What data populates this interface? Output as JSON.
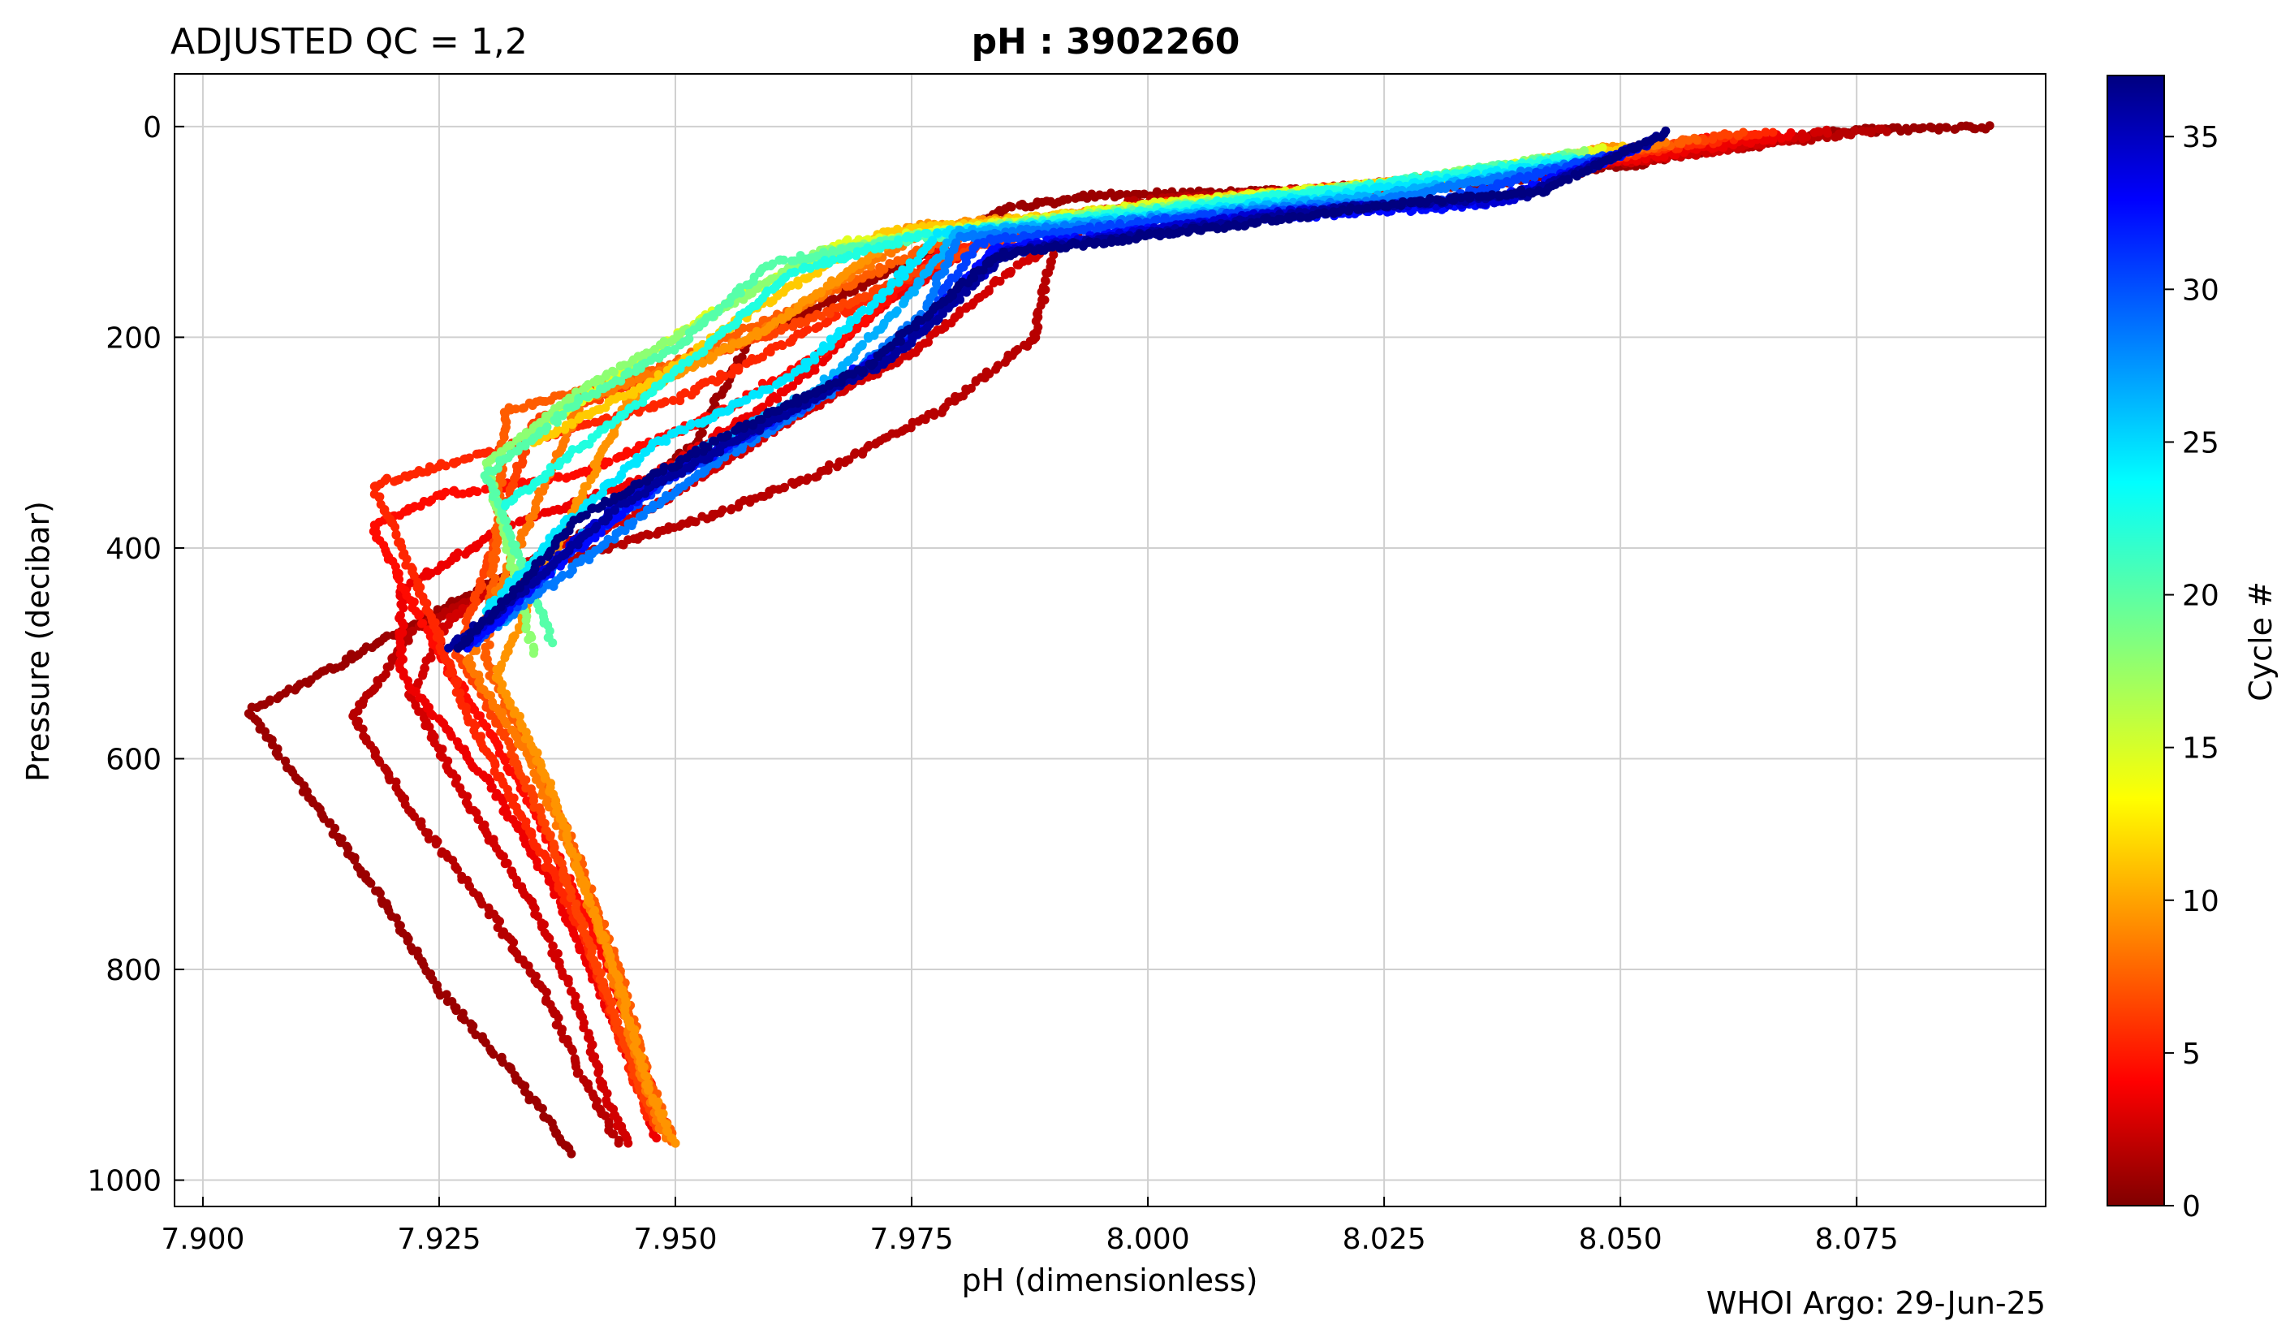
{
  "header": {
    "left_title": "ADJUSTED QC = 1,2",
    "center_title": "pH : 3902260"
  },
  "footer": {
    "credit": "WHOI Argo: 29-Jun-25"
  },
  "chart_data": {
    "type": "scatter",
    "title": "pH : 3902260",
    "xlabel": "pH  (dimensionless)",
    "ylabel": "Pressure  (decibar)",
    "xlim": [
      7.897,
      8.095
    ],
    "ylim": [
      1025,
      -50
    ],
    "y_inverted": true,
    "x_ticks": [
      7.9,
      7.925,
      7.95,
      7.975,
      8.0,
      8.025,
      8.05,
      8.075
    ],
    "x_tick_labels": [
      "7.900",
      "7.925",
      "7.950",
      "7.975",
      "8.000",
      "8.025",
      "8.050",
      "8.075"
    ],
    "y_ticks": [
      0,
      200,
      400,
      600,
      800,
      1000
    ],
    "y_tick_labels": [
      "0",
      "200",
      "400",
      "600",
      "800",
      "1000"
    ],
    "grid": true,
    "colorbar": {
      "label": "Cycle #",
      "min": 0,
      "max": 37,
      "ticks": [
        0,
        5,
        10,
        15,
        20,
        25,
        30,
        35
      ],
      "tick_labels": [
        "0",
        "5",
        "10",
        "15",
        "20",
        "25",
        "30",
        "35"
      ],
      "colormap": "jet_reversed"
    },
    "series": [
      {
        "cycle": 1,
        "points": [
          [
            8.089,
            0
          ],
          [
            8.072,
            5
          ],
          [
            8.062,
            18
          ],
          [
            8.052,
            35
          ],
          [
            8.035,
            55
          ],
          [
            8.012,
            62
          ],
          [
            7.995,
            65
          ],
          [
            7.985,
            78
          ],
          [
            7.98,
            105
          ],
          [
            7.97,
            150
          ],
          [
            7.958,
            200
          ],
          [
            7.952,
            300
          ],
          [
            7.942,
            378
          ],
          [
            7.925,
            460
          ],
          [
            7.905,
            555
          ],
          [
            7.91,
            620
          ],
          [
            7.918,
            720
          ],
          [
            7.925,
            820
          ],
          [
            7.933,
            900
          ],
          [
            7.939,
            975
          ]
        ]
      },
      {
        "cycle": 2,
        "points": [
          [
            8.078,
            3
          ],
          [
            8.062,
            20
          ],
          [
            8.045,
            40
          ],
          [
            8.02,
            58
          ],
          [
            7.998,
            72
          ],
          [
            7.99,
            115
          ],
          [
            7.988,
            200
          ],
          [
            7.978,
            270
          ],
          [
            7.965,
            330
          ],
          [
            7.952,
            375
          ],
          [
            7.935,
            420
          ],
          [
            7.922,
            480
          ],
          [
            7.916,
            560
          ],
          [
            7.922,
            650
          ],
          [
            7.93,
            740
          ],
          [
            7.936,
            820
          ],
          [
            7.94,
            900
          ],
          [
            7.944,
            965
          ]
        ]
      },
      {
        "cycle": 3,
        "points": [
          [
            8.072,
            5
          ],
          [
            8.058,
            25
          ],
          [
            8.04,
            45
          ],
          [
            8.015,
            62
          ],
          [
            7.995,
            80
          ],
          [
            7.985,
            140
          ],
          [
            7.975,
            215
          ],
          [
            7.96,
            290
          ],
          [
            7.948,
            360
          ],
          [
            7.935,
            410
          ],
          [
            7.926,
            470
          ],
          [
            7.922,
            540
          ],
          [
            7.928,
            640
          ],
          [
            7.935,
            740
          ],
          [
            7.94,
            840
          ],
          [
            7.943,
            930
          ],
          [
            7.945,
            965
          ]
        ]
      },
      {
        "cycle": 4,
        "points": [
          [
            8.068,
            8
          ],
          [
            8.052,
            30
          ],
          [
            8.03,
            55
          ],
          [
            8.005,
            70
          ],
          [
            7.985,
            95
          ],
          [
            7.972,
            170
          ],
          [
            7.962,
            250
          ],
          [
            7.948,
            330
          ],
          [
            7.932,
            380
          ],
          [
            7.921,
            440
          ],
          [
            7.921,
            520
          ],
          [
            7.93,
            620
          ],
          [
            7.937,
            720
          ],
          [
            7.942,
            820
          ],
          [
            7.946,
            900
          ],
          [
            7.948,
            960
          ]
        ]
      },
      {
        "cycle": 5,
        "points": [
          [
            8.06,
            10
          ],
          [
            8.045,
            35
          ],
          [
            8.02,
            60
          ],
          [
            7.998,
            78
          ],
          [
            7.978,
            120
          ],
          [
            7.968,
            200
          ],
          [
            7.955,
            270
          ],
          [
            7.94,
            330
          ],
          [
            7.925,
            350
          ],
          [
            7.918,
            380
          ],
          [
            7.925,
            500
          ],
          [
            7.932,
            600
          ],
          [
            7.938,
            700
          ],
          [
            7.943,
            800
          ],
          [
            7.946,
            880
          ],
          [
            7.949,
            950
          ]
        ]
      },
      {
        "cycle": 6,
        "points": [
          [
            8.066,
            5
          ],
          [
            8.05,
            28
          ],
          [
            8.028,
            52
          ],
          [
            8.002,
            72
          ],
          [
            7.982,
            110
          ],
          [
            7.965,
            190
          ],
          [
            7.95,
            260
          ],
          [
            7.93,
            310
          ],
          [
            7.918,
            340
          ],
          [
            7.924,
            460
          ],
          [
            7.928,
            560
          ],
          [
            7.934,
            660
          ],
          [
            7.94,
            760
          ],
          [
            7.944,
            860
          ],
          [
            7.947,
            940
          ]
        ]
      },
      {
        "cycle": 7,
        "points": [
          [
            8.063,
            6
          ],
          [
            8.045,
            32
          ],
          [
            8.024,
            56
          ],
          [
            8.0,
            76
          ],
          [
            7.982,
            115
          ],
          [
            7.965,
            180
          ],
          [
            7.947,
            240
          ],
          [
            7.935,
            280
          ],
          [
            7.927,
            500
          ],
          [
            7.932,
            580
          ],
          [
            7.937,
            680
          ],
          [
            7.941,
            780
          ],
          [
            7.945,
            880
          ],
          [
            7.948,
            950
          ]
        ]
      },
      {
        "cycle": 8,
        "points": [
          [
            8.058,
            12
          ],
          [
            8.042,
            38
          ],
          [
            8.018,
            62
          ],
          [
            7.996,
            80
          ],
          [
            7.978,
            110
          ],
          [
            7.962,
            175
          ],
          [
            7.948,
            230
          ],
          [
            7.932,
            270
          ],
          [
            7.93,
            510
          ],
          [
            7.935,
            600
          ],
          [
            7.94,
            700
          ],
          [
            7.944,
            800
          ],
          [
            7.947,
            900
          ],
          [
            7.95,
            965
          ]
        ]
      },
      {
        "cycle": 9,
        "points": [
          [
            8.055,
            14
          ],
          [
            8.04,
            40
          ],
          [
            8.015,
            65
          ],
          [
            7.994,
            82
          ],
          [
            7.976,
            100
          ],
          [
            7.958,
            200
          ],
          [
            7.94,
            260
          ],
          [
            7.928,
            510
          ],
          [
            7.934,
            590
          ],
          [
            7.939,
            690
          ],
          [
            7.943,
            790
          ],
          [
            7.946,
            890
          ],
          [
            7.949,
            960
          ]
        ]
      },
      {
        "cycle": 10,
        "points": [
          [
            8.05,
            18
          ],
          [
            8.035,
            45
          ],
          [
            8.01,
            68
          ],
          [
            7.99,
            85
          ],
          [
            7.975,
            95
          ],
          [
            7.96,
            190
          ],
          [
            7.945,
            260
          ],
          [
            7.931,
            520
          ],
          [
            7.936,
            610
          ],
          [
            7.94,
            710
          ],
          [
            7.944,
            810
          ],
          [
            7.947,
            910
          ],
          [
            7.95,
            965
          ]
        ]
      },
      {
        "cycle": 12,
        "points": [
          [
            8.05,
            20
          ],
          [
            8.03,
            50
          ],
          [
            8.005,
            70
          ],
          [
            7.985,
            90
          ],
          [
            7.972,
            100
          ],
          [
            7.958,
            175
          ],
          [
            7.948,
            240
          ],
          [
            7.935,
            300
          ]
        ]
      },
      {
        "cycle": 15,
        "points": [
          [
            8.048,
            22
          ],
          [
            8.028,
            52
          ],
          [
            8.0,
            74
          ],
          [
            7.982,
            95
          ],
          [
            7.968,
            110
          ],
          [
            7.955,
            170
          ],
          [
            7.945,
            230
          ],
          [
            7.935,
            290
          ]
        ]
      },
      {
        "cycle": 18,
        "points": [
          [
            8.046,
            25
          ],
          [
            8.025,
            55
          ],
          [
            7.998,
            80
          ],
          [
            7.978,
            100
          ],
          [
            7.965,
            120
          ],
          [
            7.952,
            190
          ],
          [
            7.94,
            250
          ],
          [
            7.93,
            320
          ],
          [
            7.935,
            500
          ]
        ]
      },
      {
        "cycle": 20,
        "points": [
          [
            8.045,
            28
          ],
          [
            8.022,
            58
          ],
          [
            7.995,
            85
          ],
          [
            7.972,
            110
          ],
          [
            7.96,
            130
          ],
          [
            7.95,
            210
          ],
          [
            7.94,
            260
          ],
          [
            7.93,
            330
          ],
          [
            7.937,
            490
          ]
        ]
      },
      {
        "cycle": 22,
        "points": [
          [
            8.045,
            30
          ],
          [
            8.02,
            60
          ],
          [
            7.99,
            90
          ],
          [
            7.975,
            105
          ],
          [
            7.962,
            140
          ],
          [
            7.952,
            220
          ],
          [
            7.942,
            290
          ],
          [
            7.932,
            360
          ]
        ]
      },
      {
        "cycle": 24,
        "points": [
          [
            8.046,
            32
          ],
          [
            8.02,
            65
          ],
          [
            7.992,
            92
          ],
          [
            7.978,
            100
          ],
          [
            7.972,
            160
          ],
          [
            7.962,
            240
          ],
          [
            7.948,
            300
          ],
          [
            7.938,
            380
          ],
          [
            7.93,
            460
          ]
        ]
      },
      {
        "cycle": 26,
        "points": [
          [
            8.047,
            34
          ],
          [
            8.022,
            68
          ],
          [
            7.996,
            90
          ],
          [
            7.98,
            100
          ],
          [
            7.974,
            170
          ],
          [
            7.965,
            250
          ],
          [
            7.952,
            310
          ],
          [
            7.94,
            390
          ],
          [
            7.932,
            470
          ]
        ]
      },
      {
        "cycle": 28,
        "points": [
          [
            8.048,
            30
          ],
          [
            8.025,
            70
          ],
          [
            8.0,
            88
          ],
          [
            7.98,
            105
          ],
          [
            7.976,
            180
          ],
          [
            7.966,
            255
          ],
          [
            7.954,
            320
          ],
          [
            7.942,
            400
          ],
          [
            7.93,
            480
          ]
        ]
      },
      {
        "cycle": 30,
        "points": [
          [
            8.05,
            25
          ],
          [
            8.03,
            72
          ],
          [
            8.005,
            85
          ],
          [
            7.982,
            110
          ],
          [
            7.976,
            190
          ],
          [
            7.964,
            265
          ],
          [
            7.95,
            330
          ],
          [
            7.938,
            410
          ],
          [
            7.929,
            490
          ]
        ]
      },
      {
        "cycle": 32,
        "points": [
          [
            8.052,
            20
          ],
          [
            8.035,
            75
          ],
          [
            8.01,
            88
          ],
          [
            7.984,
            115
          ],
          [
            7.975,
            200
          ],
          [
            7.962,
            270
          ],
          [
            7.948,
            340
          ],
          [
            7.937,
            420
          ],
          [
            7.928,
            495
          ]
        ]
      },
      {
        "cycle": 34,
        "points": [
          [
            8.053,
            15
          ],
          [
            8.038,
            70
          ],
          [
            8.015,
            80
          ],
          [
            7.985,
            118
          ],
          [
            7.974,
            210
          ],
          [
            7.96,
            280
          ],
          [
            7.945,
            350
          ],
          [
            7.935,
            430
          ],
          [
            7.927,
            495
          ]
        ]
      },
      {
        "cycle": 36,
        "points": [
          [
            8.054,
            10
          ],
          [
            8.04,
            65
          ],
          [
            8.02,
            78
          ],
          [
            7.985,
            120
          ],
          [
            7.973,
            220
          ],
          [
            7.958,
            290
          ],
          [
            7.944,
            360
          ],
          [
            7.934,
            440
          ],
          [
            7.926,
            495
          ]
        ]
      },
      {
        "cycle": 37,
        "points": [
          [
            8.055,
            5
          ],
          [
            8.042,
            60
          ],
          [
            8.025,
            75
          ],
          [
            7.984,
            122
          ],
          [
            7.97,
            230
          ],
          [
            7.955,
            295
          ],
          [
            7.94,
            370
          ],
          [
            7.932,
            450
          ],
          [
            7.927,
            495
          ]
        ]
      }
    ]
  },
  "colors": {
    "grid": "#d0d0d0",
    "axes": "#000000",
    "background": "#ffffff"
  }
}
